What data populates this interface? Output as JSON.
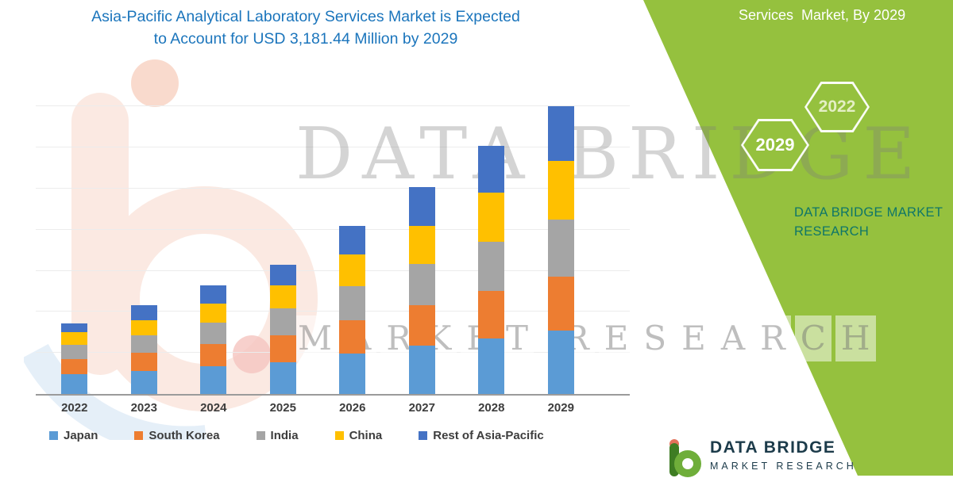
{
  "header": {
    "title_line1": "Asia-Pacific Analytical Laboratory Services Market is Expected",
    "title_line2": "to Account for USD 3,181.44 Million by 2029"
  },
  "side_panel": {
    "heading": "Services  Market, By 2029",
    "hexagon_2029": "2029",
    "hexagon_2022": "2022",
    "brand_line1": "DATA BRIDGE MARKET",
    "brand_line2": "RESEARCH"
  },
  "watermark": {
    "line1": "DATA BRIDGE",
    "line2": "MARKET RESEARCH"
  },
  "footer_logo": {
    "name": "DATA BRIDGE",
    "subtext": "MARKET RESEARCH"
  },
  "colors": {
    "panel_green": "#95c13e",
    "title_blue": "#1b75bc",
    "brand_teal": "#0f7668",
    "axis_gray": "#9b9b9b"
  },
  "chart_data": {
    "type": "bar",
    "stacked": true,
    "title": "Asia-Pacific Analytical Laboratory Services Market is Expected to Account for USD 3,181.44 Million by 2029",
    "unit": "USD Million",
    "categories": [
      "2022",
      "2023",
      "2024",
      "2025",
      "2026",
      "2027",
      "2028",
      "2029"
    ],
    "series": [
      {
        "name": "Japan",
        "color": "#5B9BD5",
        "values": [
          220,
          255,
          307,
          350,
          447,
          535,
          613,
          700
        ]
      },
      {
        "name": "South Korea",
        "color": "#ED7D31",
        "values": [
          168,
          200,
          245,
          298,
          368,
          447,
          526,
          596
        ]
      },
      {
        "name": "India",
        "color": "#A5A5A5",
        "values": [
          158,
          193,
          237,
          298,
          377,
          456,
          543,
          631
        ]
      },
      {
        "name": "China",
        "color": "#FFC000",
        "values": [
          138,
          167,
          210,
          254,
          351,
          421,
          543,
          648
        ]
      },
      {
        "name": "Rest of Asia-Pacific",
        "color": "#4472C4",
        "values": [
          98,
          167,
          202,
          228,
          316,
          429,
          517,
          606.44
        ]
      }
    ],
    "ylim": [
      0,
      3500
    ],
    "grid": true,
    "legend_position": "bottom",
    "x_axis_labels_visible": true,
    "y_axis_labels_visible": false
  }
}
